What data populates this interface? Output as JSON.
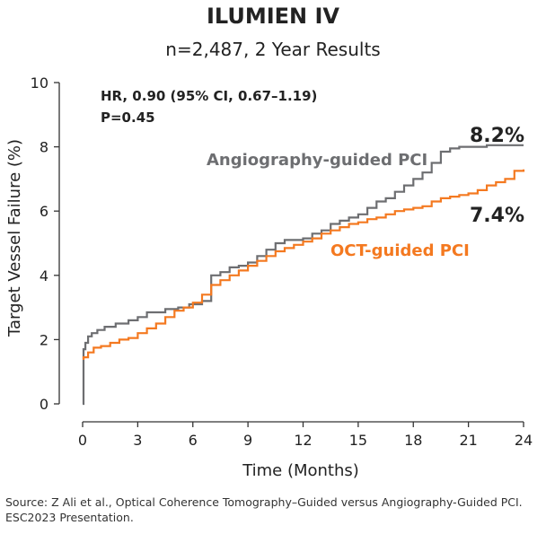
{
  "chart_data": {
    "type": "line",
    "title": "ILUMIEN IV",
    "subtitle": "n=2,487, 2 Year Results",
    "xlabel": "Time (Months)",
    "ylabel": "Target Vessel Failure (%)",
    "xlim": [
      0,
      24
    ],
    "ylim": [
      0,
      10
    ],
    "xticks": [
      0,
      3,
      6,
      9,
      12,
      15,
      18,
      21,
      24
    ],
    "yticks": [
      0,
      2,
      4,
      6,
      8,
      10
    ],
    "grid": false,
    "stats_line1": "HR, 0.90 (95% CI, 0.67–1.19)",
    "stats_line2": "P=0.45",
    "series": [
      {
        "name": "Angiography-guided PCI",
        "color": "#6d6e71",
        "end_label": "8.2%",
        "x": [
          0,
          0.05,
          0.15,
          0.3,
          0.5,
          0.8,
          1.2,
          1.8,
          2.5,
          3.0,
          3.5,
          4.5,
          5.2,
          5.8,
          6.5,
          7.0,
          7.5,
          8.0,
          8.5,
          9.0,
          9.5,
          10.0,
          10.5,
          11.0,
          11.5,
          12.0,
          12.5,
          13.0,
          13.5,
          14.0,
          14.5,
          15.0,
          15.5,
          16.0,
          16.5,
          17.0,
          17.5,
          18.0,
          18.5,
          19.0,
          19.5,
          20.0,
          20.5,
          21.0,
          22.0,
          23.0,
          24.0
        ],
        "y": [
          0,
          1.7,
          1.9,
          2.1,
          2.2,
          2.3,
          2.4,
          2.5,
          2.6,
          2.7,
          2.85,
          2.95,
          3.0,
          3.1,
          3.2,
          4.0,
          4.1,
          4.25,
          4.3,
          4.4,
          4.6,
          4.8,
          5.0,
          5.1,
          5.1,
          5.15,
          5.3,
          5.4,
          5.6,
          5.7,
          5.8,
          5.9,
          6.1,
          6.3,
          6.4,
          6.6,
          6.8,
          7.0,
          7.2,
          7.5,
          7.85,
          7.95,
          8.0,
          8.0,
          8.05,
          8.05,
          8.05
        ]
      },
      {
        "name": "OCT-guided PCI",
        "color": "#f47920",
        "end_label": "7.4%",
        "x": [
          0,
          0.05,
          0.3,
          0.6,
          1.0,
          1.5,
          2.0,
          2.5,
          3.0,
          3.5,
          4.0,
          4.5,
          5.0,
          5.5,
          6.0,
          6.5,
          7.0,
          7.5,
          8.0,
          8.5,
          9.0,
          9.5,
          10.0,
          10.5,
          11.0,
          11.5,
          12.0,
          12.5,
          13.0,
          13.5,
          14.0,
          14.5,
          15.0,
          15.5,
          16.0,
          16.5,
          17.0,
          17.5,
          18.0,
          18.5,
          19.0,
          19.5,
          20.0,
          20.5,
          21.0,
          21.5,
          22.0,
          22.5,
          23.0,
          23.5,
          24.0
        ],
        "y": [
          1.4,
          1.45,
          1.6,
          1.75,
          1.8,
          1.9,
          2.0,
          2.05,
          2.2,
          2.35,
          2.5,
          2.7,
          2.9,
          3.0,
          3.15,
          3.4,
          3.7,
          3.85,
          4.0,
          4.15,
          4.3,
          4.45,
          4.6,
          4.75,
          4.85,
          4.95,
          5.05,
          5.15,
          5.3,
          5.4,
          5.5,
          5.6,
          5.65,
          5.75,
          5.8,
          5.9,
          6.0,
          6.05,
          6.1,
          6.15,
          6.3,
          6.4,
          6.45,
          6.5,
          6.55,
          6.65,
          6.8,
          6.9,
          7.0,
          7.25,
          7.3
        ]
      }
    ]
  },
  "source": {
    "line1": "Source: Z Ali et al., Optical Coherence Tomography–Guided versus Angiography-Guided PCI.",
    "line2": "ESC2023 Presentation."
  }
}
